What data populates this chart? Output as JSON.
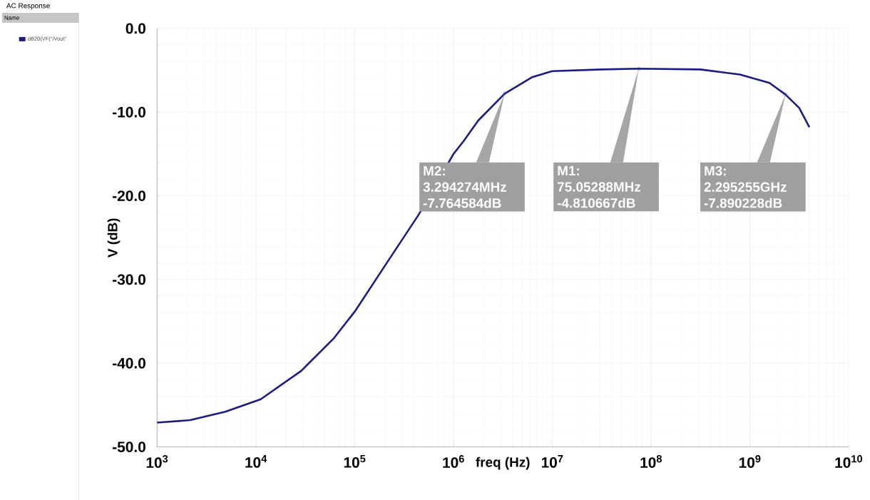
{
  "chart_data": {
    "type": "line",
    "title": "AC Response",
    "legend_title": "Name",
    "xlabel": "freq (Hz)",
    "ylabel": "V (dB)",
    "log": "x",
    "grid": true,
    "legend": "left",
    "marker": "none",
    "xlim": [
      1000,
      10000000000
    ],
    "ylim": [
      -50,
      0
    ],
    "xticks": [
      {
        "value": 1000,
        "label": "10$^{3}$"
      },
      {
        "value": 10000,
        "label": "10$^{4}$"
      },
      {
        "value": 100000,
        "label": "10$^{5}$"
      },
      {
        "value": 1000000,
        "label": "10$^{6}$"
      },
      {
        "value": 10000000,
        "label": "10$^{7}$"
      },
      {
        "value": 100000000,
        "label": "10$^{8}$"
      },
      {
        "value": 1000000000,
        "label": "10$^{9}$"
      },
      {
        "value": 10000000000,
        "label": "10$^{10}$"
      }
    ],
    "yticks": [
      {
        "value": -50,
        "label": "-50.0"
      },
      {
        "value": -40,
        "label": "-40.0"
      },
      {
        "value": -30,
        "label": "-30.0"
      },
      {
        "value": -20,
        "label": "-20.0"
      },
      {
        "value": -10,
        "label": "-10.0"
      },
      {
        "value": 0,
        "label": "0.0"
      }
    ],
    "x": [
      1000,
      2160,
      4900,
      11200,
      28800,
      61700,
      102000,
      209000,
      447000,
      1000000,
      1260000,
      1780000,
      3294274,
      6310000,
      10000000,
      31600000,
      75052880,
      316000000,
      794000000,
      1580000000,
      2295255000,
      3160000000,
      4000000000
    ],
    "series": [
      {
        "name": "dB20(VF(\"/Vout\"",
        "color": "#1c1c80",
        "values": [
          -47.1,
          -46.8,
          -45.8,
          -44.3,
          -40.9,
          -37.0,
          -33.7,
          -28.1,
          -22.2,
          -15.0,
          -13.5,
          -11.0,
          -7.8,
          -5.8,
          -5.1,
          -4.9,
          -4.8,
          -4.9,
          -5.5,
          -6.5,
          -7.9,
          -9.5,
          -11.8
        ]
      }
    ],
    "annotations": [
      {
        "text": "M2: 3.294274MHz -7.764584dB",
        "x": 3294274,
        "y": -7.764584
      },
      {
        "text": "M1: 75.05288MHz -4.810667dB",
        "x": 75052880,
        "y": -4.810667
      },
      {
        "text": "M3: 2.295255GHz -7.890228dB",
        "x": 2295255000,
        "y": -7.890228
      }
    ]
  }
}
